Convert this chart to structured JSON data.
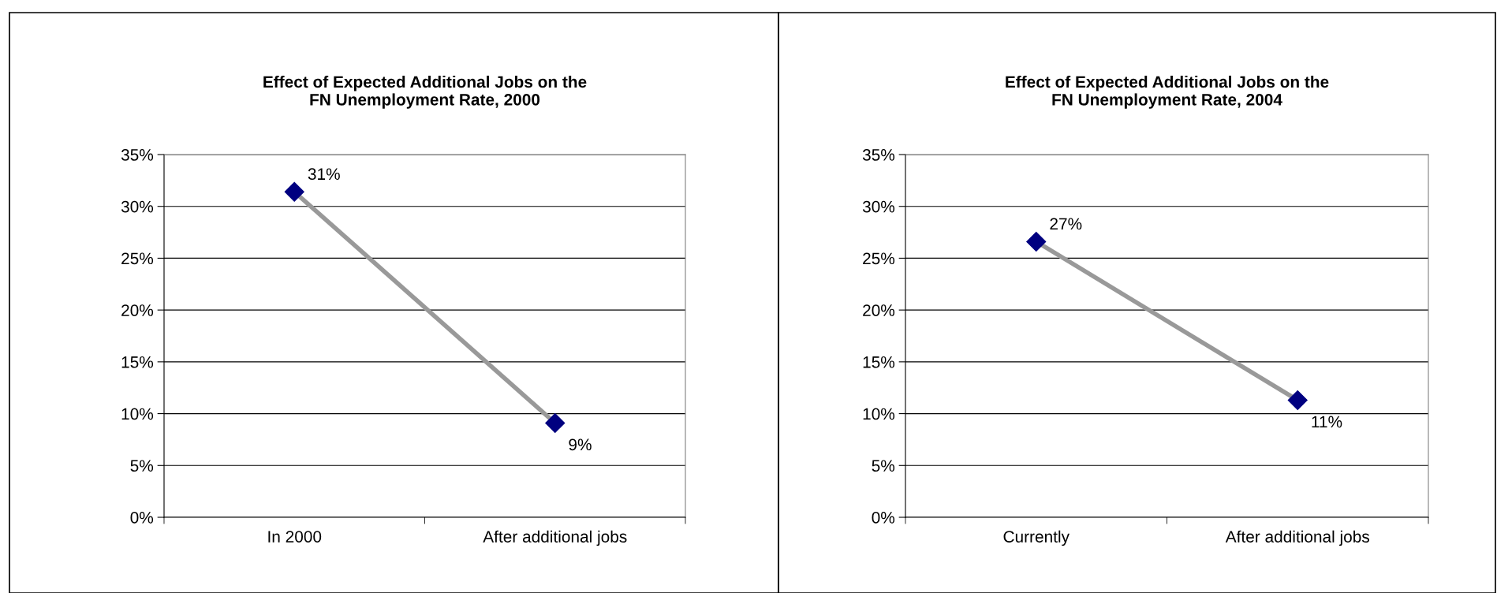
{
  "chart_data": [
    {
      "type": "line",
      "title": "Effect of Expected Additional Jobs on the\nFN Unemployment Rate, 2000",
      "categories": [
        "In 2000",
        "After additional jobs"
      ],
      "series": [
        {
          "color": "#999999",
          "values": [
            31.4,
            9.1
          ],
          "value_labels": [
            "31%",
            "9%"
          ]
        }
      ],
      "marker": "diamond",
      "line_style": "solid",
      "grid": "y",
      "legend": false,
      "ylim": [
        0,
        35
      ],
      "yticks": [
        {
          "value": 0,
          "label": "0%"
        },
        {
          "value": 5,
          "label": "5%"
        },
        {
          "value": 10,
          "label": "10%"
        },
        {
          "value": 15,
          "label": "15%"
        },
        {
          "value": 20,
          "label": "20%"
        },
        {
          "value": 25,
          "label": "25%"
        },
        {
          "value": 30,
          "label": "30%"
        },
        {
          "value": 35,
          "label": "35%"
        }
      ]
    },
    {
      "type": "line",
      "title": "Effect of Expected Additional Jobs on the\nFN Unemployment Rate, 2004",
      "categories": [
        "Currently",
        "After additional jobs"
      ],
      "series": [
        {
          "color": "#999999",
          "values": [
            26.6,
            11.3
          ],
          "value_labels": [
            "27%",
            "11%"
          ]
        }
      ],
      "marker": "diamond",
      "line_style": "solid",
      "grid": "y",
      "legend": false,
      "ylim": [
        0,
        35
      ],
      "yticks": [
        {
          "value": 0,
          "label": "0%"
        },
        {
          "value": 5,
          "label": "5%"
        },
        {
          "value": 10,
          "label": "10%"
        },
        {
          "value": 15,
          "label": "15%"
        },
        {
          "value": 20,
          "label": "20%"
        },
        {
          "value": 25,
          "label": "25%"
        },
        {
          "value": 30,
          "label": "30%"
        },
        {
          "value": 35,
          "label": "35%"
        }
      ]
    }
  ]
}
